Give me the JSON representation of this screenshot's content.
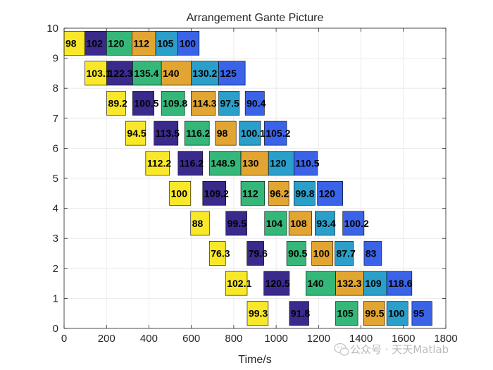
{
  "chart_data": {
    "type": "gantt",
    "title": "Arrangement Gante Picture",
    "xlabel": "Time/s",
    "ylabel": "",
    "xlim": [
      0,
      1800
    ],
    "ylim": [
      0,
      10
    ],
    "xticks": [
      "0",
      "200",
      "400",
      "600",
      "800",
      "1000",
      "1200",
      "1400",
      "1600",
      "1800"
    ],
    "yticks": [
      "0",
      "1",
      "2",
      "3",
      "4",
      "5",
      "6",
      "7",
      "8",
      "9",
      "10"
    ],
    "grid": true,
    "stage_colors": [
      "#F9E82A",
      "#3A2A8C",
      "#35B779",
      "#E3A531",
      "#2A9FC9",
      "#3B63E8"
    ],
    "rows": [
      {
        "y": 9.5,
        "tasks": [
          {
            "start": 0,
            "dur": 98,
            "label": "98",
            "stage": 0
          },
          {
            "start": 98,
            "dur": 102,
            "label": "102",
            "stage": 1
          },
          {
            "start": 200,
            "dur": 120,
            "label": "120",
            "stage": 2
          },
          {
            "start": 320,
            "dur": 112,
            "label": "112",
            "stage": 3
          },
          {
            "start": 432,
            "dur": 105,
            "label": "105",
            "stage": 4
          },
          {
            "start": 537,
            "dur": 100,
            "label": "100",
            "stage": 5
          }
        ]
      },
      {
        "y": 8.5,
        "tasks": [
          {
            "start": 98,
            "dur": 103.1,
            "label": "103.1",
            "stage": 0
          },
          {
            "start": 201.1,
            "dur": 122.3,
            "label": "122.3",
            "stage": 1
          },
          {
            "start": 323.4,
            "dur": 135.4,
            "label": "135.4",
            "stage": 2
          },
          {
            "start": 458.8,
            "dur": 140,
            "label": "140",
            "stage": 3
          },
          {
            "start": 598.8,
            "dur": 130.2,
            "label": "130.2",
            "stage": 4
          },
          {
            "start": 729,
            "dur": 125,
            "label": "125",
            "stage": 5
          }
        ]
      },
      {
        "y": 7.5,
        "tasks": [
          {
            "start": 201.1,
            "dur": 89.2,
            "label": "89.2",
            "stage": 0
          },
          {
            "start": 323.4,
            "dur": 100.5,
            "label": "100.5",
            "stage": 1
          },
          {
            "start": 458.8,
            "dur": 109.8,
            "label": "109.8",
            "stage": 2
          },
          {
            "start": 598.8,
            "dur": 114.3,
            "label": "114.3",
            "stage": 3
          },
          {
            "start": 729,
            "dur": 97.5,
            "label": "97.5",
            "stage": 4
          },
          {
            "start": 854,
            "dur": 90.4,
            "label": "90.4",
            "stage": 5
          }
        ]
      },
      {
        "y": 6.5,
        "tasks": [
          {
            "start": 290.3,
            "dur": 94.5,
            "label": "94.5",
            "stage": 0
          },
          {
            "start": 423.9,
            "dur": 113.5,
            "label": "113.5",
            "stage": 1
          },
          {
            "start": 568.6,
            "dur": 116.2,
            "label": "116.2",
            "stage": 2
          },
          {
            "start": 713.1,
            "dur": 98,
            "label": "98",
            "stage": 3
          },
          {
            "start": 826.5,
            "dur": 100.1,
            "label": "100.1",
            "stage": 4
          },
          {
            "start": 944.4,
            "dur": 105.2,
            "label": "105.2",
            "stage": 5
          }
        ]
      },
      {
        "y": 5.5,
        "tasks": [
          {
            "start": 384.8,
            "dur": 112.2,
            "label": "112.2",
            "stage": 0
          },
          {
            "start": 537.4,
            "dur": 116.2,
            "label": "116.2",
            "stage": 1
          },
          {
            "start": 684.8,
            "dur": 148.9,
            "label": "148.9",
            "stage": 2
          },
          {
            "start": 833.7,
            "dur": 130,
            "label": "130",
            "stage": 3
          },
          {
            "start": 963.7,
            "dur": 120,
            "label": "120",
            "stage": 4
          },
          {
            "start": 1083.7,
            "dur": 110.5,
            "label": "110.5",
            "stage": 5
          }
        ]
      },
      {
        "y": 4.5,
        "tasks": [
          {
            "start": 497,
            "dur": 100,
            "label": "100",
            "stage": 0
          },
          {
            "start": 653.6,
            "dur": 109.2,
            "label": "109.2",
            "stage": 1
          },
          {
            "start": 833.7,
            "dur": 112,
            "label": "112",
            "stage": 2
          },
          {
            "start": 963.7,
            "dur": 96.2,
            "label": "96.2",
            "stage": 3
          },
          {
            "start": 1083.7,
            "dur": 99.8,
            "label": "99.8",
            "stage": 4
          },
          {
            "start": 1194.2,
            "dur": 120,
            "label": "120",
            "stage": 5
          }
        ]
      },
      {
        "y": 3.5,
        "tasks": [
          {
            "start": 597,
            "dur": 88,
            "label": "88",
            "stage": 0
          },
          {
            "start": 762.8,
            "dur": 99.5,
            "label": "99.5",
            "stage": 1
          },
          {
            "start": 945.7,
            "dur": 104,
            "label": "104",
            "stage": 2
          },
          {
            "start": 1059.9,
            "dur": 108,
            "label": "108",
            "stage": 3
          },
          {
            "start": 1183.5,
            "dur": 93.4,
            "label": "93.4",
            "stage": 4
          },
          {
            "start": 1314.2,
            "dur": 100.2,
            "label": "100.2",
            "stage": 5
          }
        ]
      },
      {
        "y": 2.5,
        "tasks": [
          {
            "start": 685,
            "dur": 76.3,
            "label": "76.3",
            "stage": 0
          },
          {
            "start": 862.3,
            "dur": 79.6,
            "label": "79.6",
            "stage": 1
          },
          {
            "start": 1049.7,
            "dur": 90.5,
            "label": "90.5",
            "stage": 2
          },
          {
            "start": 1167.9,
            "dur": 100,
            "label": "100",
            "stage": 3
          },
          {
            "start": 1276.9,
            "dur": 87.7,
            "label": "87.7",
            "stage": 4
          },
          {
            "start": 1414.4,
            "dur": 83,
            "label": "83",
            "stage": 5
          }
        ]
      },
      {
        "y": 1.5,
        "tasks": [
          {
            "start": 761.3,
            "dur": 102.1,
            "label": "102.1",
            "stage": 0
          },
          {
            "start": 941.9,
            "dur": 120.5,
            "label": "120.5",
            "stage": 1
          },
          {
            "start": 1140.2,
            "dur": 140,
            "label": "140",
            "stage": 2
          },
          {
            "start": 1280.2,
            "dur": 132.3,
            "label": "132.3",
            "stage": 3
          },
          {
            "start": 1412.5,
            "dur": 109,
            "label": "109",
            "stage": 4
          },
          {
            "start": 1521.5,
            "dur": 118.6,
            "label": "118.6",
            "stage": 5
          }
        ]
      },
      {
        "y": 0.5,
        "tasks": [
          {
            "start": 863.4,
            "dur": 99.3,
            "label": "99.3",
            "stage": 0
          },
          {
            "start": 1062.4,
            "dur": 91.8,
            "label": "91.8",
            "stage": 1
          },
          {
            "start": 1280.2,
            "dur": 105,
            "label": "105",
            "stage": 2
          },
          {
            "start": 1412.5,
            "dur": 99.5,
            "label": "99.5",
            "stage": 3
          },
          {
            "start": 1521.5,
            "dur": 100,
            "label": "100",
            "stage": 4
          },
          {
            "start": 1640.1,
            "dur": 95,
            "label": "95",
            "stage": 5
          }
        ]
      }
    ]
  },
  "watermark": {
    "text": "公众号 · 天天Matlab"
  }
}
